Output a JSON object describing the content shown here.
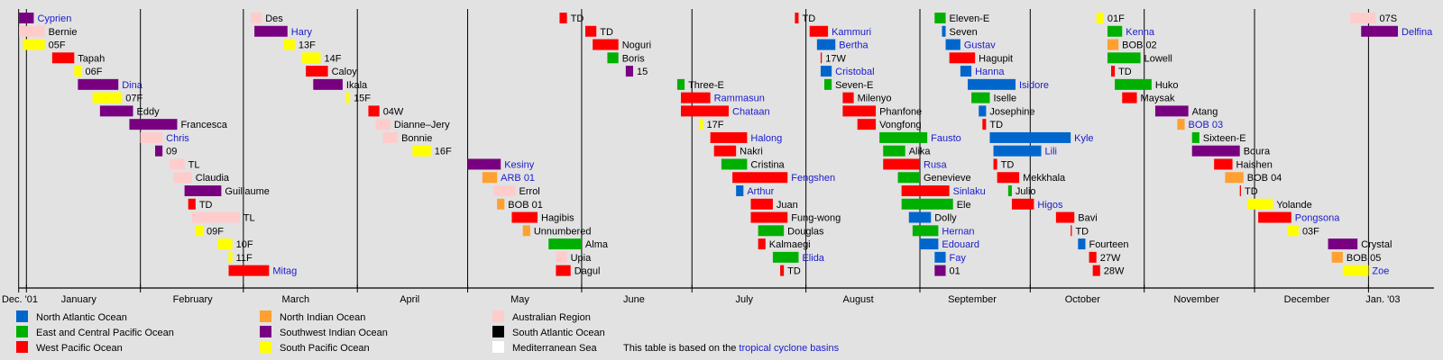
{
  "chart_data": {
    "type": "timeline",
    "axis_start": "2001-12-29",
    "axis_end": "2003-01-16",
    "x_tick_labels": [
      "Dec. '01",
      "January",
      "February",
      "March",
      "April",
      "May",
      "June",
      "July",
      "August",
      "September",
      "October",
      "November",
      "December",
      "Jan. '03"
    ],
    "basins": {
      "NA": {
        "label": "North Atlantic Ocean",
        "color": "#0066cc"
      },
      "EP": {
        "label": "East and Central Pacific Ocean",
        "color": "#00b000"
      },
      "WP": {
        "label": "West Pacific Ocean",
        "color": "#ff0000"
      },
      "NI": {
        "label": "North Indian Ocean",
        "color": "#ffa030"
      },
      "SWI": {
        "label": "Southwest Indian Ocean",
        "color": "#780080"
      },
      "SP": {
        "label": "South Pacific Ocean",
        "color": "#ffff00"
      },
      "AUS": {
        "label": "Australian Region",
        "color": "#ffcccc"
      },
      "SA": {
        "label": "South Atlantic Ocean",
        "color": "#000000"
      },
      "MED": {
        "label": "Mediterranean Sea",
        "color": "#ffffff"
      }
    },
    "legend_order": [
      "NA",
      "EP",
      "WP",
      "NI",
      "SWI",
      "SP",
      "AUS",
      "SA",
      "MED"
    ],
    "storms": [
      {
        "name": "Cyprien",
        "basin": "SWI",
        "start": "2001-12-30",
        "end": "2002-01-02",
        "linked": true
      },
      {
        "name": "Bernie",
        "basin": "AUS",
        "start": "2001-12-30",
        "end": "2002-01-05",
        "linked": false
      },
      {
        "name": "05F",
        "basin": "SP",
        "start": "2001-12-31",
        "end": "2002-01-05",
        "linked": false
      },
      {
        "name": "Tapah",
        "basin": "WP",
        "start": "2002-01-08",
        "end": "2002-01-13",
        "linked": false
      },
      {
        "name": "06F",
        "basin": "SP",
        "start": "2002-01-14",
        "end": "2002-01-15",
        "linked": false
      },
      {
        "name": "Dina",
        "basin": "SWI",
        "start": "2002-01-15",
        "end": "2002-01-25",
        "linked": true
      },
      {
        "name": "07F",
        "basin": "SP",
        "start": "2002-01-19",
        "end": "2002-01-26",
        "linked": false
      },
      {
        "name": "Eddy",
        "basin": "SWI",
        "start": "2002-01-21",
        "end": "2002-01-29",
        "linked": false
      },
      {
        "name": "Francesca",
        "basin": "SWI",
        "start": "2002-01-29",
        "end": "2002-02-10",
        "linked": false
      },
      {
        "name": "Chris",
        "basin": "AUS",
        "start": "2002-02-01",
        "end": "2002-02-06",
        "linked": true
      },
      {
        "name": "09",
        "basin": "SWI",
        "start": "2002-02-05",
        "end": "2002-02-06",
        "linked": false
      },
      {
        "name": "TL",
        "basin": "AUS",
        "start": "2002-02-09",
        "end": "2002-02-12",
        "linked": false
      },
      {
        "name": "Claudia",
        "basin": "AUS",
        "start": "2002-02-10",
        "end": "2002-02-14",
        "linked": false
      },
      {
        "name": "Guillaume",
        "basin": "SWI",
        "start": "2002-02-13",
        "end": "2002-02-22",
        "linked": false
      },
      {
        "name": "TD",
        "basin": "WP",
        "start": "2002-02-14",
        "end": "2002-02-15",
        "linked": false
      },
      {
        "name": "TL",
        "basin": "AUS",
        "start": "2002-02-15",
        "end": "2002-02-27",
        "linked": false
      },
      {
        "name": "09F",
        "basin": "SP",
        "start": "2002-02-16",
        "end": "2002-02-17",
        "linked": false
      },
      {
        "name": "10F",
        "basin": "SP",
        "start": "2002-02-22",
        "end": "2002-02-25",
        "linked": false
      },
      {
        "name": "11F",
        "basin": "SP",
        "start": "2002-02-25",
        "end": "2002-02-25",
        "linked": false
      },
      {
        "name": "Mitag",
        "basin": "WP",
        "start": "2002-02-25",
        "end": "2002-03-07",
        "linked": true
      },
      {
        "name": "Des",
        "basin": "AUS",
        "start": "2002-03-03",
        "end": "2002-03-05",
        "linked": false
      },
      {
        "name": "Hary",
        "basin": "SWI",
        "start": "2002-03-04",
        "end": "2002-03-12",
        "linked": true
      },
      {
        "name": "13F",
        "basin": "SP",
        "start": "2002-03-12",
        "end": "2002-03-14",
        "linked": false
      },
      {
        "name": "14F",
        "basin": "SP",
        "start": "2002-03-17",
        "end": "2002-03-21",
        "linked": false
      },
      {
        "name": "Caloy",
        "basin": "WP",
        "start": "2002-03-18",
        "end": "2002-03-23",
        "linked": false
      },
      {
        "name": "Ikala",
        "basin": "SWI",
        "start": "2002-03-20",
        "end": "2002-03-27",
        "linked": false
      },
      {
        "name": "15F",
        "basin": "SP",
        "start": "2002-03-29",
        "end": "2002-03-29",
        "linked": false
      },
      {
        "name": "04W",
        "basin": "WP",
        "start": "2002-04-04",
        "end": "2002-04-06",
        "linked": false
      },
      {
        "name": "Dianne–Jery",
        "basin": "AUS",
        "start": "2002-04-06",
        "end": "2002-04-09",
        "linked": false
      },
      {
        "name": "Bonnie",
        "basin": "AUS",
        "start": "2002-04-08",
        "end": "2002-04-11",
        "linked": false
      },
      {
        "name": "16F",
        "basin": "SP",
        "start": "2002-04-16",
        "end": "2002-04-20",
        "linked": false
      },
      {
        "name": "Kesiny",
        "basin": "SWI",
        "start": "2002-05-01",
        "end": "2002-05-09",
        "linked": true
      },
      {
        "name": "ARB 01",
        "basin": "NI",
        "start": "2002-05-05",
        "end": "2002-05-08",
        "linked": true
      },
      {
        "name": "Errol",
        "basin": "AUS",
        "start": "2002-05-08",
        "end": "2002-05-13",
        "linked": false
      },
      {
        "name": "BOB 01",
        "basin": "NI",
        "start": "2002-05-09",
        "end": "2002-05-10",
        "linked": false
      },
      {
        "name": "Hagibis",
        "basin": "WP",
        "start": "2002-05-13",
        "end": "2002-05-19",
        "linked": false
      },
      {
        "name": "Unnumbered",
        "basin": "NI",
        "start": "2002-05-16",
        "end": "2002-05-17",
        "linked": false
      },
      {
        "name": "Alma",
        "basin": "EP",
        "start": "2002-05-23",
        "end": "2002-05-31",
        "linked": false
      },
      {
        "name": "Upia",
        "basin": "AUS",
        "start": "2002-05-25",
        "end": "2002-05-27",
        "linked": false
      },
      {
        "name": "Dagul",
        "basin": "WP",
        "start": "2002-05-25",
        "end": "2002-05-28",
        "linked": false
      },
      {
        "name": "TD",
        "basin": "WP",
        "start": "2002-05-26",
        "end": "2002-05-27",
        "linked": false
      },
      {
        "name": "TD",
        "basin": "WP",
        "start": "2002-06-02",
        "end": "2002-06-04",
        "linked": false
      },
      {
        "name": "Noguri",
        "basin": "WP",
        "start": "2002-06-04",
        "end": "2002-06-10",
        "linked": false
      },
      {
        "name": "Boris",
        "basin": "EP",
        "start": "2002-06-08",
        "end": "2002-06-10",
        "linked": false
      },
      {
        "name": "15",
        "basin": "SWI",
        "start": "2002-06-13",
        "end": "2002-06-14",
        "linked": false
      },
      {
        "name": "Three-E",
        "basin": "EP",
        "start": "2002-06-27",
        "end": "2002-06-28",
        "linked": false
      },
      {
        "name": "Rammasun",
        "basin": "WP",
        "start": "2002-06-28",
        "end": "2002-07-05",
        "linked": true
      },
      {
        "name": "Chataan",
        "basin": "WP",
        "start": "2002-06-28",
        "end": "2002-07-10",
        "linked": true
      },
      {
        "name": "17F",
        "basin": "SP",
        "start": "2002-07-03",
        "end": "2002-07-03",
        "linked": false
      },
      {
        "name": "Halong",
        "basin": "WP",
        "start": "2002-07-06",
        "end": "2002-07-15",
        "linked": true
      },
      {
        "name": "Nakri",
        "basin": "WP",
        "start": "2002-07-07",
        "end": "2002-07-12",
        "linked": false
      },
      {
        "name": "Cristina",
        "basin": "EP",
        "start": "2002-07-09",
        "end": "2002-07-15",
        "linked": false
      },
      {
        "name": "Fengshen",
        "basin": "WP",
        "start": "2002-07-12",
        "end": "2002-07-26",
        "linked": true
      },
      {
        "name": "Arthur",
        "basin": "NA",
        "start": "2002-07-13",
        "end": "2002-07-14",
        "linked": true
      },
      {
        "name": "Juan",
        "basin": "WP",
        "start": "2002-07-17",
        "end": "2002-07-22",
        "linked": false
      },
      {
        "name": "Fung-wong",
        "basin": "WP",
        "start": "2002-07-17",
        "end": "2002-07-26",
        "linked": false
      },
      {
        "name": "Douglas",
        "basin": "EP",
        "start": "2002-07-19",
        "end": "2002-07-25",
        "linked": false
      },
      {
        "name": "Kalmaegi",
        "basin": "WP",
        "start": "2002-07-19",
        "end": "2002-07-20",
        "linked": false
      },
      {
        "name": "Elida",
        "basin": "EP",
        "start": "2002-07-23",
        "end": "2002-07-29",
        "linked": true
      },
      {
        "name": "TD",
        "basin": "WP",
        "start": "2002-07-25",
        "end": "2002-07-25",
        "linked": false
      },
      {
        "name": "TD",
        "basin": "WP",
        "start": "2002-07-29",
        "end": "2002-07-29",
        "linked": false
      },
      {
        "name": "Kammuri",
        "basin": "WP",
        "start": "2002-08-02",
        "end": "2002-08-06",
        "linked": true
      },
      {
        "name": "Bertha",
        "basin": "NA",
        "start": "2002-08-04",
        "end": "2002-08-08",
        "linked": true
      },
      {
        "name": "17W",
        "basin": "WP",
        "start": "2002-08-05",
        "end": "2002-08-05",
        "linked": false
      },
      {
        "name": "Cristobal",
        "basin": "NA",
        "start": "2002-08-05",
        "end": "2002-08-07",
        "linked": true
      },
      {
        "name": "Seven-E",
        "basin": "EP",
        "start": "2002-08-06",
        "end": "2002-08-07",
        "linked": false
      },
      {
        "name": "Milenyo",
        "basin": "WP",
        "start": "2002-08-11",
        "end": "2002-08-13",
        "linked": false
      },
      {
        "name": "Phanfone",
        "basin": "WP",
        "start": "2002-08-11",
        "end": "2002-08-19",
        "linked": false
      },
      {
        "name": "Vongfong",
        "basin": "WP",
        "start": "2002-08-15",
        "end": "2002-08-19",
        "linked": false
      },
      {
        "name": "Fausto",
        "basin": "EP",
        "start": "2002-08-21",
        "end": "2002-09-02",
        "linked": true
      },
      {
        "name": "Alika",
        "basin": "EP",
        "start": "2002-08-22",
        "end": "2002-08-27",
        "linked": false
      },
      {
        "name": "Rusa",
        "basin": "WP",
        "start": "2002-08-22",
        "end": "2002-08-31",
        "linked": true
      },
      {
        "name": "Genevieve",
        "basin": "EP",
        "start": "2002-08-26",
        "end": "2002-08-31",
        "linked": false
      },
      {
        "name": "Sinlaku",
        "basin": "WP",
        "start": "2002-08-27",
        "end": "2002-09-08",
        "linked": true
      },
      {
        "name": "Ele",
        "basin": "EP",
        "start": "2002-08-27",
        "end": "2002-09-09",
        "linked": false
      },
      {
        "name": "Dolly",
        "basin": "NA",
        "start": "2002-08-29",
        "end": "2002-09-03",
        "linked": false
      },
      {
        "name": "Hernan",
        "basin": "EP",
        "start": "2002-08-30",
        "end": "2002-09-05",
        "linked": true
      },
      {
        "name": "Edouard",
        "basin": "NA",
        "start": "2002-09-01",
        "end": "2002-09-05",
        "linked": true
      },
      {
        "name": "Fay",
        "basin": "NA",
        "start": "2002-09-05",
        "end": "2002-09-07",
        "linked": true
      },
      {
        "name": "01",
        "basin": "SWI",
        "start": "2002-09-05",
        "end": "2002-09-07",
        "linked": false
      },
      {
        "name": "Eleven-E",
        "basin": "EP",
        "start": "2002-09-05",
        "end": "2002-09-07",
        "linked": false
      },
      {
        "name": "Seven",
        "basin": "NA",
        "start": "2002-09-07",
        "end": "2002-09-07",
        "linked": false
      },
      {
        "name": "Gustav",
        "basin": "NA",
        "start": "2002-09-08",
        "end": "2002-09-11",
        "linked": true
      },
      {
        "name": "Hagupit",
        "basin": "WP",
        "start": "2002-09-09",
        "end": "2002-09-15",
        "linked": false
      },
      {
        "name": "Hanna",
        "basin": "NA",
        "start": "2002-09-12",
        "end": "2002-09-14",
        "linked": true
      },
      {
        "name": "Isidore",
        "basin": "NA",
        "start": "2002-09-14",
        "end": "2002-09-26",
        "linked": true
      },
      {
        "name": "Iselle",
        "basin": "EP",
        "start": "2002-09-15",
        "end": "2002-09-19",
        "linked": false
      },
      {
        "name": "Josephine",
        "basin": "NA",
        "start": "2002-09-17",
        "end": "2002-09-18",
        "linked": false
      },
      {
        "name": "TD",
        "basin": "WP",
        "start": "2002-09-18",
        "end": "2002-09-18",
        "linked": false
      },
      {
        "name": "Kyle",
        "basin": "NA",
        "start": "2002-09-20",
        "end": "2002-10-11",
        "linked": true
      },
      {
        "name": "Lili",
        "basin": "NA",
        "start": "2002-09-21",
        "end": "2002-10-03",
        "linked": true
      },
      {
        "name": "TD",
        "basin": "WP",
        "start": "2002-09-21",
        "end": "2002-09-21",
        "linked": false
      },
      {
        "name": "Mekkhala",
        "basin": "WP",
        "start": "2002-09-22",
        "end": "2002-09-27",
        "linked": false
      },
      {
        "name": "Julio",
        "basin": "EP",
        "start": "2002-09-25",
        "end": "2002-09-25",
        "linked": false
      },
      {
        "name": "Higos",
        "basin": "WP",
        "start": "2002-09-26",
        "end": "2002-10-01",
        "linked": true
      },
      {
        "name": "Bavi",
        "basin": "WP",
        "start": "2002-10-08",
        "end": "2002-10-12",
        "linked": false
      },
      {
        "name": "TD",
        "basin": "WP",
        "start": "2002-10-12",
        "end": "2002-10-12",
        "linked": false
      },
      {
        "name": "Fourteen",
        "basin": "NA",
        "start": "2002-10-14",
        "end": "2002-10-15",
        "linked": false
      },
      {
        "name": "27W",
        "basin": "WP",
        "start": "2002-10-17",
        "end": "2002-10-18",
        "linked": false
      },
      {
        "name": "28W",
        "basin": "WP",
        "start": "2002-10-18",
        "end": "2002-10-19",
        "linked": false
      },
      {
        "name": "01F",
        "basin": "SP",
        "start": "2002-10-19",
        "end": "2002-10-20",
        "linked": false
      },
      {
        "name": "Kenna",
        "basin": "EP",
        "start": "2002-10-22",
        "end": "2002-10-25",
        "linked": true
      },
      {
        "name": "BOB 02",
        "basin": "NI",
        "start": "2002-10-22",
        "end": "2002-10-24",
        "linked": false
      },
      {
        "name": "Lowell",
        "basin": "EP",
        "start": "2002-10-22",
        "end": "2002-10-30",
        "linked": false
      },
      {
        "name": "TD",
        "basin": "WP",
        "start": "2002-10-23",
        "end": "2002-10-23",
        "linked": false
      },
      {
        "name": "Huko",
        "basin": "EP",
        "start": "2002-10-24",
        "end": "2002-11-02",
        "linked": false
      },
      {
        "name": "Maysak",
        "basin": "WP",
        "start": "2002-10-26",
        "end": "2002-10-29",
        "linked": false
      },
      {
        "name": "Atang",
        "basin": "SWI",
        "start": "2002-11-04",
        "end": "2002-11-12",
        "linked": false
      },
      {
        "name": "BOB 03",
        "basin": "NI",
        "start": "2002-11-10",
        "end": "2002-11-11",
        "linked": true
      },
      {
        "name": "Sixteen-E",
        "basin": "EP",
        "start": "2002-11-14",
        "end": "2002-11-15",
        "linked": false
      },
      {
        "name": "Boura",
        "basin": "SWI",
        "start": "2002-11-14",
        "end": "2002-11-26",
        "linked": false
      },
      {
        "name": "Haishen",
        "basin": "WP",
        "start": "2002-11-20",
        "end": "2002-11-24",
        "linked": false
      },
      {
        "name": "BOB 04",
        "basin": "NI",
        "start": "2002-11-23",
        "end": "2002-11-27",
        "linked": false
      },
      {
        "name": "TD",
        "basin": "WP",
        "start": "2002-11-27",
        "end": "2002-11-27",
        "linked": false
      },
      {
        "name": "Yolande",
        "basin": "SP",
        "start": "2002-11-29",
        "end": "2002-12-05",
        "linked": false
      },
      {
        "name": "Pongsona",
        "basin": "WP",
        "start": "2002-12-02",
        "end": "2002-12-10",
        "linked": true
      },
      {
        "name": "03F",
        "basin": "SP",
        "start": "2002-12-10",
        "end": "2002-12-12",
        "linked": false
      },
      {
        "name": "Crystal",
        "basin": "SWI",
        "start": "2002-12-21",
        "end": "2002-12-28",
        "linked": false
      },
      {
        "name": "BOB 05",
        "basin": "NI",
        "start": "2002-12-22",
        "end": "2002-12-24",
        "linked": false
      },
      {
        "name": "Zoe",
        "basin": "SP",
        "start": "2002-12-25",
        "end": "2002-12-31",
        "linked": true
      },
      {
        "name": "07S",
        "basin": "AUS",
        "start": "2002-12-27",
        "end": "2003-01-02",
        "linked": false
      },
      {
        "name": "Delfina",
        "basin": "SWI",
        "start": "2002-12-30",
        "end": "2003-01-08",
        "linked": true
      }
    ]
  },
  "footnote": {
    "text": "This table is based on the ",
    "link": "tropical cyclone basins"
  }
}
